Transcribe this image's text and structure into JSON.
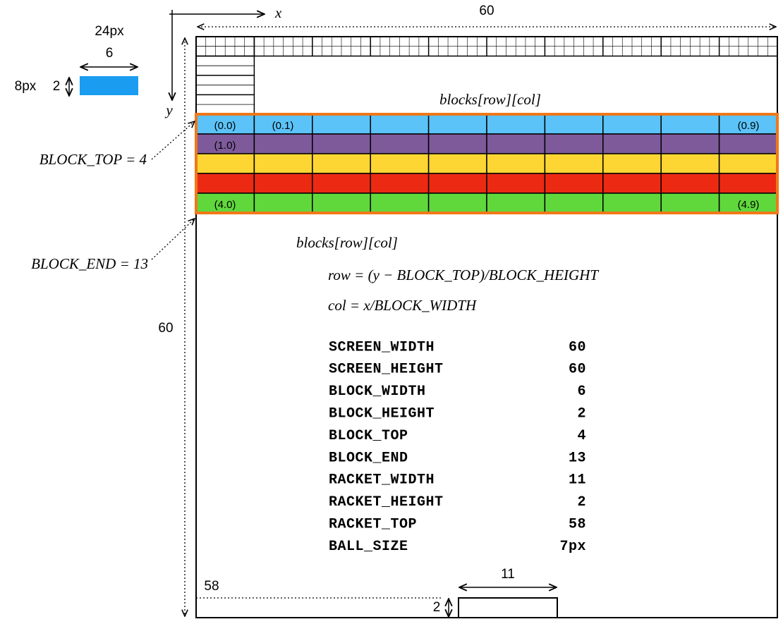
{
  "axes": {
    "x": "x",
    "y": "y",
    "screen_width": "60",
    "screen_height": "60"
  },
  "legend_block": {
    "width_px": "24px",
    "width": "6",
    "height_px": "8px",
    "height": "2"
  },
  "blocks_title": "blocks[row][col]",
  "block_labels": [
    "(0.0)",
    "(0.1)",
    "(0.9)",
    "(1.0)",
    "(4.0)",
    "(4.9)"
  ],
  "annotations": {
    "block_top": "BLOCK_TOP = 4",
    "block_end": "BLOCK_END = 13"
  },
  "formula": {
    "title": "blocks[row][col]",
    "row": "row = (y − BLOCK_TOP)/BLOCK_HEIGHT",
    "col": "col = x/BLOCK_WIDTH"
  },
  "constants": [
    [
      "SCREEN_WIDTH",
      "60"
    ],
    [
      "SCREEN_HEIGHT",
      "60"
    ],
    [
      "BLOCK_WIDTH",
      "6"
    ],
    [
      "BLOCK_HEIGHT",
      "2"
    ],
    [
      "BLOCK_TOP",
      "4"
    ],
    [
      "BLOCK_END",
      "13"
    ],
    [
      "RACKET_WIDTH",
      "11"
    ],
    [
      "RACKET_HEIGHT",
      "2"
    ],
    [
      "RACKET_TOP",
      "58"
    ],
    [
      "BALL_SIZE",
      "7px"
    ]
  ],
  "racket": {
    "top": "58",
    "width": "11",
    "height": "2"
  }
}
